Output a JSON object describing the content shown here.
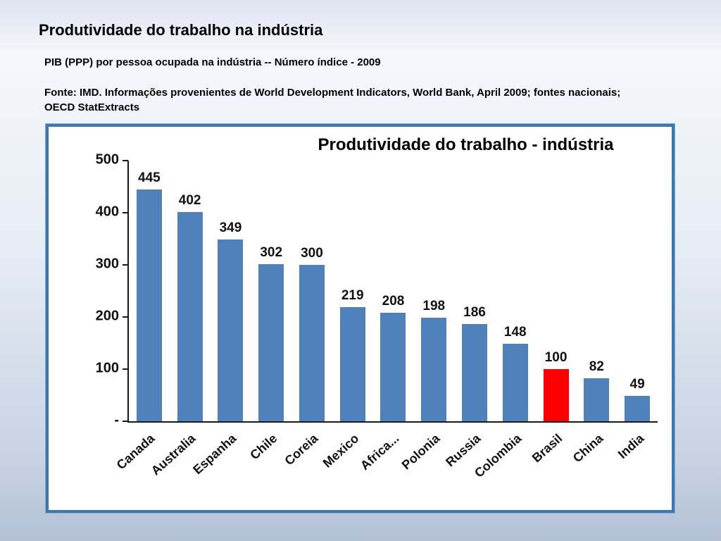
{
  "slide": {
    "title": "Produtividade do trabalho na indústria",
    "subtitle": "PIB (PPP) por pessoa ocupada na indústria --  Número índice  - 2009",
    "source": "Fonte: IMD. Informações provenientes de  World Development Indicators, World Bank, April 2009; fontes nacionais; OECD StatExtracts"
  },
  "chart_data": {
    "type": "bar",
    "title": "Produtividade do trabalho - indústria",
    "categories": [
      "Canada",
      "Australia",
      "Espanha",
      "Chile",
      "Coreia",
      "Mexico",
      "Africa...",
      "Polonia",
      "Russia",
      "Colombia",
      "Brasil",
      "China",
      "India"
    ],
    "values": [
      445,
      402,
      349,
      302,
      300,
      219,
      208,
      198,
      186,
      148,
      100,
      82,
      49
    ],
    "highlight_category": "Brasil",
    "bar_color": "#4F81BD",
    "highlight_color": "#FF0000",
    "ylim": [
      0,
      500
    ],
    "yticks": [
      500,
      400,
      300,
      200,
      100,
      0
    ],
    "ytick_labels": [
      "500",
      "400",
      "300",
      "200",
      "100",
      "-"
    ],
    "grid": false,
    "legend": "none",
    "xlabel": "",
    "ylabel": ""
  }
}
